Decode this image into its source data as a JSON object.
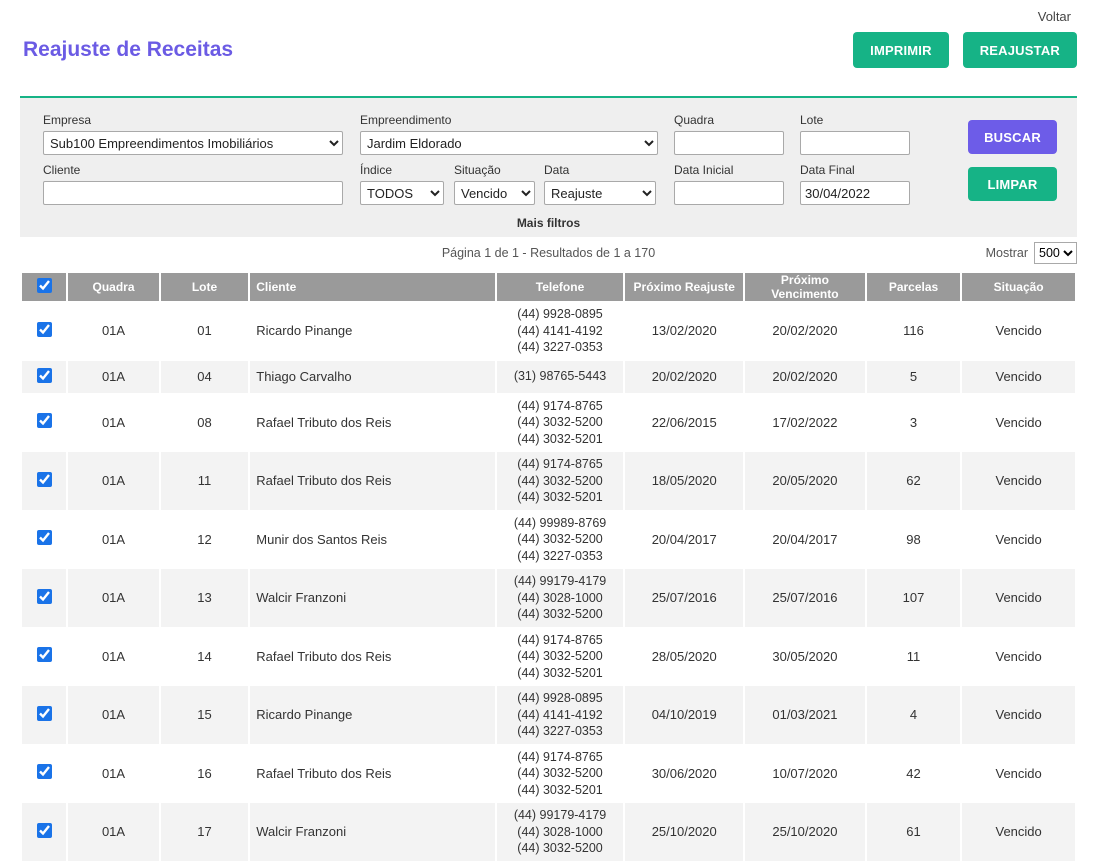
{
  "header": {
    "back_label": "Voltar",
    "title": "Reajuste de Receitas",
    "print_label": "IMPRIMIR",
    "readjust_label": "REAJUSTAR"
  },
  "filters": {
    "empresa": {
      "label": "Empresa",
      "value": "Sub100 Empreendimentos Imobiliários"
    },
    "empreendimento": {
      "label": "Empreendimento",
      "value": "Jardim Eldorado"
    },
    "quadra": {
      "label": "Quadra",
      "value": ""
    },
    "lote": {
      "label": "Lote",
      "value": ""
    },
    "cliente": {
      "label": "Cliente",
      "value": ""
    },
    "indice": {
      "label": "Índice",
      "value": "TODOS"
    },
    "situacao": {
      "label": "Situação",
      "value": "Vencido"
    },
    "data": {
      "label": "Data",
      "value": "Reajuste"
    },
    "data_inicial": {
      "label": "Data Inicial",
      "value": ""
    },
    "data_final": {
      "label": "Data Final",
      "value": "30/04/2022"
    },
    "buscar_label": "BUSCAR",
    "limpar_label": "LIMPAR",
    "mais_filtros_label": "Mais filtros"
  },
  "pagination": {
    "summary": "Página 1 de 1 - Resultados de 1 a 170",
    "mostrar_label": "Mostrar",
    "page_size": "500"
  },
  "colors": {
    "accent_green": "#16b386",
    "accent_purple": "#6d5ce8",
    "title_purple": "#6b5be4",
    "table_header_gray": "#9a9a9a",
    "checkbox_blue": "#1a73e8"
  },
  "table": {
    "columns": [
      "Quadra",
      "Lote",
      "Cliente",
      "Telefone",
      "Próximo Reajuste",
      "Próximo Vencimento",
      "Parcelas",
      "Situação"
    ],
    "rows": [
      {
        "quadra": "01A",
        "lote": "01",
        "cliente": "Ricardo Pinange",
        "telefones": [
          "(44) 9928-0895",
          "(44) 4141-4192",
          "(44) 3227-0353"
        ],
        "proximo_reajuste": "13/02/2020",
        "proximo_vencimento": "20/02/2020",
        "parcelas": "116",
        "situacao": "Vencido",
        "checked": true
      },
      {
        "quadra": "01A",
        "lote": "04",
        "cliente": "Thiago Carvalho",
        "telefones": [
          "(31) 98765-5443"
        ],
        "proximo_reajuste": "20/02/2020",
        "proximo_vencimento": "20/02/2020",
        "parcelas": "5",
        "situacao": "Vencido",
        "checked": true
      },
      {
        "quadra": "01A",
        "lote": "08",
        "cliente": "Rafael Tributo dos Reis",
        "telefones": [
          "(44) 9174-8765",
          "(44) 3032-5200",
          "(44) 3032-5201"
        ],
        "proximo_reajuste": "22/06/2015",
        "proximo_vencimento": "17/02/2022",
        "parcelas": "3",
        "situacao": "Vencido",
        "checked": true
      },
      {
        "quadra": "01A",
        "lote": "11",
        "cliente": "Rafael Tributo dos Reis",
        "telefones": [
          "(44) 9174-8765",
          "(44) 3032-5200",
          "(44) 3032-5201"
        ],
        "proximo_reajuste": "18/05/2020",
        "proximo_vencimento": "20/05/2020",
        "parcelas": "62",
        "situacao": "Vencido",
        "checked": true
      },
      {
        "quadra": "01A",
        "lote": "12",
        "cliente": "Munir dos Santos Reis",
        "telefones": [
          "(44) 99989-8769",
          "(44) 3032-5200",
          "(44) 3227-0353"
        ],
        "proximo_reajuste": "20/04/2017",
        "proximo_vencimento": "20/04/2017",
        "parcelas": "98",
        "situacao": "Vencido",
        "checked": true
      },
      {
        "quadra": "01A",
        "lote": "13",
        "cliente": "Walcir Franzoni",
        "telefones": [
          "(44) 99179-4179",
          "(44) 3028-1000",
          "(44) 3032-5200"
        ],
        "proximo_reajuste": "25/07/2016",
        "proximo_vencimento": "25/07/2016",
        "parcelas": "107",
        "situacao": "Vencido",
        "checked": true
      },
      {
        "quadra": "01A",
        "lote": "14",
        "cliente": "Rafael Tributo dos Reis",
        "telefones": [
          "(44) 9174-8765",
          "(44) 3032-5200",
          "(44) 3032-5201"
        ],
        "proximo_reajuste": "28/05/2020",
        "proximo_vencimento": "30/05/2020",
        "parcelas": "11",
        "situacao": "Vencido",
        "checked": true
      },
      {
        "quadra": "01A",
        "lote": "15",
        "cliente": "Ricardo Pinange",
        "telefones": [
          "(44) 9928-0895",
          "(44) 4141-4192",
          "(44) 3227-0353"
        ],
        "proximo_reajuste": "04/10/2019",
        "proximo_vencimento": "01/03/2021",
        "parcelas": "4",
        "situacao": "Vencido",
        "checked": true
      },
      {
        "quadra": "01A",
        "lote": "16",
        "cliente": "Rafael Tributo dos Reis",
        "telefones": [
          "(44) 9174-8765",
          "(44) 3032-5200",
          "(44) 3032-5201"
        ],
        "proximo_reajuste": "30/06/2020",
        "proximo_vencimento": "10/07/2020",
        "parcelas": "42",
        "situacao": "Vencido",
        "checked": true
      },
      {
        "quadra": "01A",
        "lote": "17",
        "cliente": "Walcir Franzoni",
        "telefones": [
          "(44) 99179-4179",
          "(44) 3028-1000",
          "(44) 3032-5200"
        ],
        "proximo_reajuste": "25/10/2020",
        "proximo_vencimento": "25/10/2020",
        "parcelas": "61",
        "situacao": "Vencido",
        "checked": true
      }
    ]
  }
}
